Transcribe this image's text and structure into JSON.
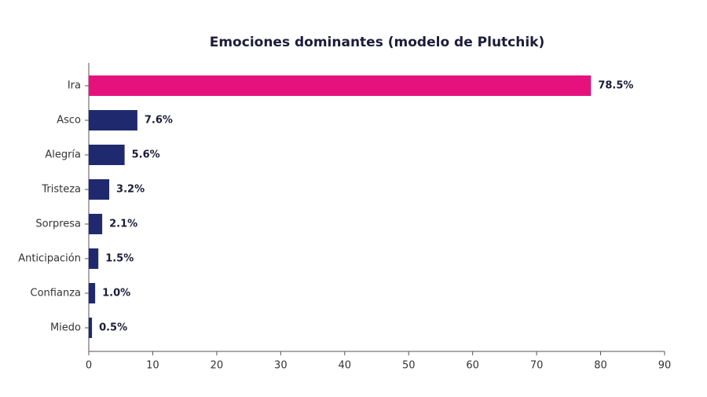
{
  "chart_data": {
    "type": "barh",
    "title": "Emociones dominantes (modelo de Plutchik)",
    "categories": [
      "Ira",
      "Asco",
      "Alegría",
      "Tristeza",
      "Sorpresa",
      "Anticipación",
      "Confianza",
      "Miedo"
    ],
    "values": [
      78.5,
      7.6,
      5.6,
      3.2,
      2.1,
      1.5,
      1.0,
      0.5
    ],
    "value_labels": [
      "78.5%",
      "7.6%",
      "5.6%",
      "3.2%",
      "2.1%",
      "1.5%",
      "1.0%",
      "0.5%"
    ],
    "colors": [
      "#e5127d",
      "#1f2a6e",
      "#1f2a6e",
      "#1f2a6e",
      "#1f2a6e",
      "#1f2a6e",
      "#1f2a6e",
      "#1f2a6e"
    ],
    "xlim": [
      0,
      90
    ],
    "xticks": [
      0,
      10,
      20,
      30,
      40,
      50,
      60,
      70,
      80,
      90
    ],
    "grid": false
  }
}
